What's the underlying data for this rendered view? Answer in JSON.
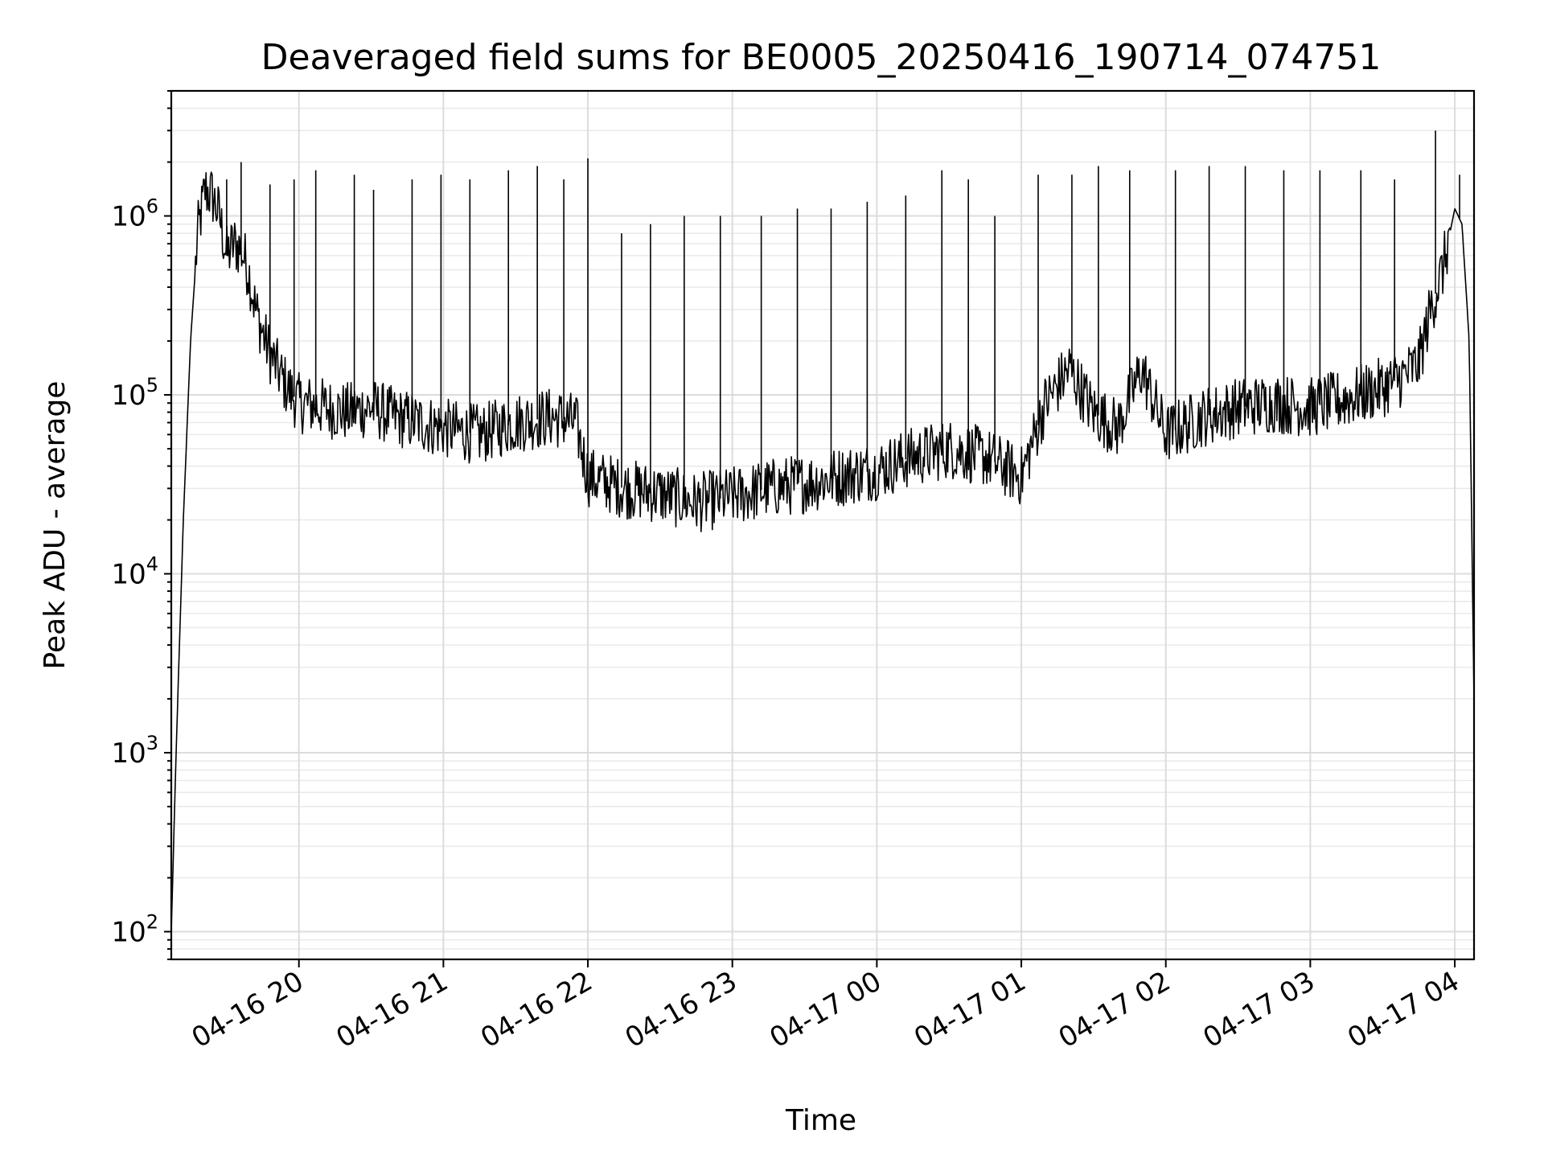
{
  "chart_data": {
    "type": "line",
    "title": "Deaveraged field sums for BE0005_20250416_190714_074751",
    "xlabel": "Time",
    "ylabel": "Peak ADU - average",
    "yscale": "log",
    "ylim": [
      70,
      5000000
    ],
    "xlim": [
      "2025-04-16 19:07",
      "2025-04-17 04:08"
    ],
    "grid": true,
    "line_color": "#000000",
    "x_ticks": [
      {
        "t": "2025-04-16 20:00",
        "label": "04-16 20"
      },
      {
        "t": "2025-04-16 21:00",
        "label": "04-16 21"
      },
      {
        "t": "2025-04-16 22:00",
        "label": "04-16 22"
      },
      {
        "t": "2025-04-16 23:00",
        "label": "04-16 23"
      },
      {
        "t": "2025-04-17 00:00",
        "label": "04-17 00"
      },
      {
        "t": "2025-04-17 01:00",
        "label": "04-17 01"
      },
      {
        "t": "2025-04-17 02:00",
        "label": "04-17 02"
      },
      {
        "t": "2025-04-17 03:00",
        "label": "04-17 03"
      },
      {
        "t": "2025-04-17 04:00",
        "label": "04-17 04"
      }
    ],
    "y_ticks": [
      {
        "value": 100,
        "base": "10",
        "exp": "2"
      },
      {
        "value": 1000,
        "base": "10",
        "exp": "3"
      },
      {
        "value": 10000,
        "base": "10",
        "exp": "4"
      },
      {
        "value": 100000,
        "base": "10",
        "exp": "5"
      },
      {
        "value": 1000000,
        "base": "10",
        "exp": "6"
      }
    ],
    "series": [
      {
        "x": [
          "2025-04-16 19:07",
          "2025-04-16 19:09",
          "2025-04-16 19:12",
          "2025-04-16 19:15",
          "2025-04-16 19:18",
          "2025-04-16 19:21",
          "2025-04-16 19:24",
          "2025-04-16 19:27",
          "2025-04-16 19:30",
          "2025-04-16 19:33",
          "2025-04-16 19:36",
          "2025-04-16 19:39",
          "2025-04-16 19:42",
          "2025-04-16 19:45",
          "2025-04-16 19:48",
          "2025-04-16 19:51",
          "2025-04-16 19:55",
          "2025-04-16 20:00",
          "2025-04-16 20:10",
          "2025-04-16 20:20",
          "2025-04-16 20:30",
          "2025-04-16 20:40",
          "2025-04-16 20:50",
          "2025-04-16 21:00",
          "2025-04-16 21:15",
          "2025-04-16 21:30",
          "2025-04-16 21:45",
          "2025-04-16 21:55",
          "2025-04-16 22:00",
          "2025-04-16 22:15",
          "2025-04-16 22:30",
          "2025-04-16 22:45",
          "2025-04-16 23:00",
          "2025-04-16 23:15",
          "2025-04-16 23:30",
          "2025-04-16 23:45",
          "2025-04-17 00:00",
          "2025-04-17 00:15",
          "2025-04-17 00:30",
          "2025-04-17 00:45",
          "2025-04-17 01:00",
          "2025-04-17 01:10",
          "2025-04-17 01:20",
          "2025-04-17 01:30",
          "2025-04-17 01:40",
          "2025-04-17 01:50",
          "2025-04-17 02:00",
          "2025-04-17 02:15",
          "2025-04-17 02:30",
          "2025-04-17 02:45",
          "2025-04-17 03:00",
          "2025-04-17 03:15",
          "2025-04-17 03:30",
          "2025-04-17 03:40",
          "2025-04-17 03:45",
          "2025-04-17 03:50",
          "2025-04-17 03:55",
          "2025-04-17 04:00",
          "2025-04-17 04:03",
          "2025-04-17 04:06",
          "2025-04-17 04:08"
        ],
        "y": [
          100,
          1000,
          20000,
          200000,
          800000,
          1400000,
          1300000,
          1000000,
          600000,
          700000,
          650000,
          500000,
          300000,
          220000,
          170000,
          140000,
          110000,
          90000,
          85000,
          80000,
          85000,
          75000,
          70000,
          65000,
          60000,
          70000,
          75000,
          70000,
          35000,
          30000,
          28000,
          25000,
          27000,
          30000,
          32000,
          35000,
          38000,
          45000,
          50000,
          45000,
          35000,
          90000,
          140000,
          80000,
          65000,
          140000,
          60000,
          75000,
          85000,
          90000,
          85000,
          95000,
          110000,
          130000,
          150000,
          300000,
          500000,
          1100000,
          900000,
          200000,
          2000
        ]
      }
    ],
    "spikes": [
      {
        "t": "2025-04-16 19:30",
        "y": 1600000
      },
      {
        "t": "2025-04-16 19:36",
        "y": 2000000
      },
      {
        "t": "2025-04-16 19:48",
        "y": 1500000
      },
      {
        "t": "2025-04-16 19:58",
        "y": 1600000
      },
      {
        "t": "2025-04-16 20:07",
        "y": 1800000
      },
      {
        "t": "2025-04-16 20:23",
        "y": 1700000
      },
      {
        "t": "2025-04-16 20:31",
        "y": 1400000
      },
      {
        "t": "2025-04-16 20:47",
        "y": 1600000
      },
      {
        "t": "2025-04-16 20:59",
        "y": 1700000
      },
      {
        "t": "2025-04-16 21:11",
        "y": 1600000
      },
      {
        "t": "2025-04-16 21:27",
        "y": 1800000
      },
      {
        "t": "2025-04-16 21:39",
        "y": 1900000
      },
      {
        "t": "2025-04-16 21:50",
        "y": 1600000
      },
      {
        "t": "2025-04-16 22:00",
        "y": 2100000
      },
      {
        "t": "2025-04-16 22:14",
        "y": 800000
      },
      {
        "t": "2025-04-16 22:26",
        "y": 900000
      },
      {
        "t": "2025-04-16 22:40",
        "y": 1000000
      },
      {
        "t": "2025-04-16 22:55",
        "y": 1000000
      },
      {
        "t": "2025-04-16 23:12",
        "y": 1000000
      },
      {
        "t": "2025-04-16 23:27",
        "y": 1100000
      },
      {
        "t": "2025-04-16 23:41",
        "y": 1100000
      },
      {
        "t": "2025-04-16 23:56",
        "y": 1200000
      },
      {
        "t": "2025-04-17 00:12",
        "y": 1300000
      },
      {
        "t": "2025-04-17 00:27",
        "y": 1800000
      },
      {
        "t": "2025-04-17 00:38",
        "y": 1600000
      },
      {
        "t": "2025-04-17 00:49",
        "y": 1000000
      },
      {
        "t": "2025-04-17 01:07",
        "y": 1700000
      },
      {
        "t": "2025-04-17 01:21",
        "y": 1700000
      },
      {
        "t": "2025-04-17 01:32",
        "y": 1900000
      },
      {
        "t": "2025-04-17 01:45",
        "y": 1800000
      },
      {
        "t": "2025-04-17 02:04",
        "y": 1800000
      },
      {
        "t": "2025-04-17 02:18",
        "y": 1900000
      },
      {
        "t": "2025-04-17 02:33",
        "y": 1900000
      },
      {
        "t": "2025-04-17 02:49",
        "y": 1800000
      },
      {
        "t": "2025-04-17 03:04",
        "y": 1800000
      },
      {
        "t": "2025-04-17 03:21",
        "y": 1800000
      },
      {
        "t": "2025-04-17 03:35",
        "y": 1600000
      },
      {
        "t": "2025-04-17 03:52",
        "y": 3000000
      },
      {
        "t": "2025-04-17 04:02",
        "y": 1700000
      }
    ]
  }
}
